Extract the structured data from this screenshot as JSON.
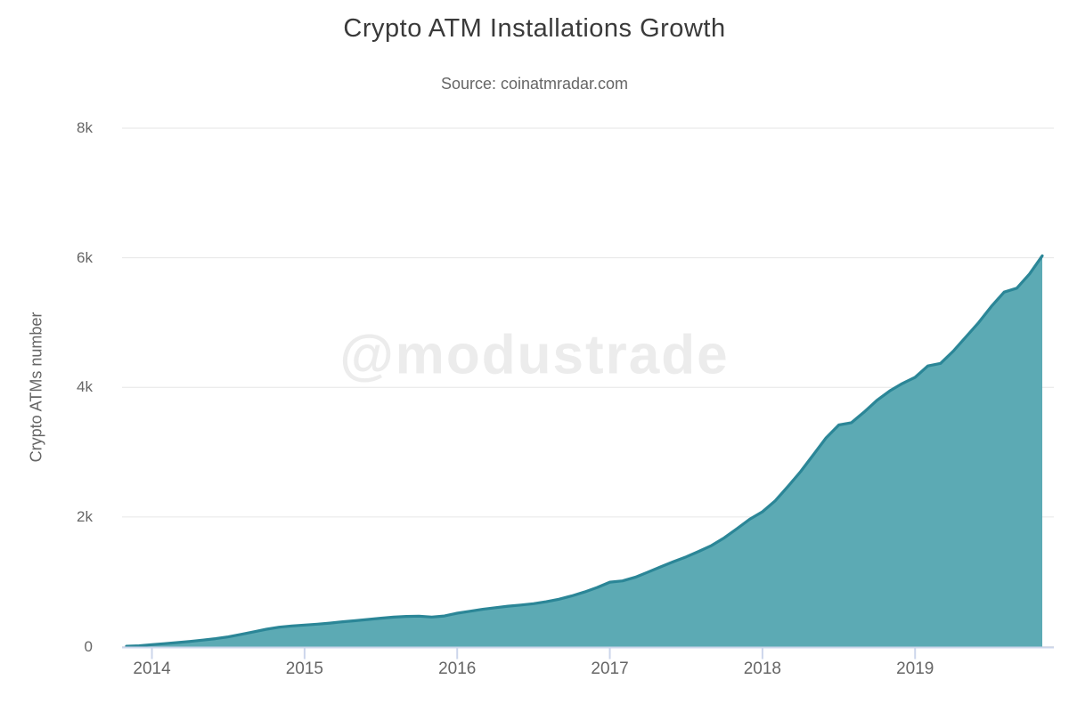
{
  "chart_data": {
    "type": "area",
    "title": "Crypto ATM Installations Growth",
    "subtitle": "Source: coinatmradar.com",
    "watermark": "@modustrade",
    "xlabel": "",
    "ylabel": "Crypto ATMs number",
    "ylim": [
      0,
      8000
    ],
    "grid": "horizontal",
    "legend": "none",
    "y_ticks": [
      {
        "value": 0,
        "label": "0"
      },
      {
        "value": 2000,
        "label": "2k"
      },
      {
        "value": 4000,
        "label": "4k"
      },
      {
        "value": 6000,
        "label": "6k"
      },
      {
        "value": 8000,
        "label": "8k"
      }
    ],
    "x_ticks": [
      {
        "label": "2014"
      },
      {
        "label": "2015"
      },
      {
        "label": "2016"
      },
      {
        "label": "2017"
      },
      {
        "label": "2018"
      },
      {
        "label": "2019"
      }
    ],
    "series": [
      {
        "name": "Crypto ATMs number",
        "x": [
          "2013-11",
          "2013-12",
          "2014-01",
          "2014-02",
          "2014-03",
          "2014-04",
          "2014-05",
          "2014-06",
          "2014-07",
          "2014-08",
          "2014-09",
          "2014-10",
          "2014-11",
          "2014-12",
          "2015-01",
          "2015-02",
          "2015-03",
          "2015-04",
          "2015-05",
          "2015-06",
          "2015-07",
          "2015-08",
          "2015-09",
          "2015-10",
          "2015-11",
          "2015-12",
          "2016-01",
          "2016-02",
          "2016-03",
          "2016-04",
          "2016-05",
          "2016-06",
          "2016-07",
          "2016-08",
          "2016-09",
          "2016-10",
          "2016-11",
          "2016-12",
          "2017-01",
          "2017-02",
          "2017-03",
          "2017-04",
          "2017-05",
          "2017-06",
          "2017-07",
          "2017-08",
          "2017-09",
          "2017-10",
          "2017-11",
          "2017-12",
          "2018-01",
          "2018-02",
          "2018-03",
          "2018-04",
          "2018-05",
          "2018-06",
          "2018-07",
          "2018-08",
          "2018-09",
          "2018-10",
          "2018-11",
          "2018-12",
          "2019-01",
          "2019-02",
          "2019-03",
          "2019-04",
          "2019-05",
          "2019-06",
          "2019-07",
          "2019-08",
          "2019-09",
          "2019-10",
          "2019-11"
        ],
        "values": [
          5,
          12,
          30,
          45,
          62,
          80,
          100,
          122,
          150,
          188,
          228,
          268,
          300,
          318,
          332,
          346,
          362,
          383,
          400,
          419,
          438,
          455,
          465,
          470,
          456,
          472,
          515,
          545,
          575,
          600,
          624,
          641,
          662,
          692,
          730,
          782,
          842,
          912,
          995,
          1014,
          1070,
          1150,
          1230,
          1310,
          1385,
          1470,
          1560,
          1680,
          1820,
          1965,
          2080,
          2250,
          2470,
          2700,
          2960,
          3220,
          3420,
          3455,
          3620,
          3800,
          3945,
          4060,
          4155,
          4330,
          4370,
          4560,
          4780,
          5000,
          5250,
          5470,
          5530,
          5750,
          6030
        ]
      }
    ],
    "colors": {
      "area_fill": "#5caab4",
      "area_line": "#2b8697",
      "grid_line": "#e6e6e6",
      "axis_line": "#ccd6eb",
      "tick_line": "#ccd6eb",
      "title_text": "#3a3a3a",
      "muted_text": "#666666",
      "watermark_text": "#ececec"
    }
  }
}
